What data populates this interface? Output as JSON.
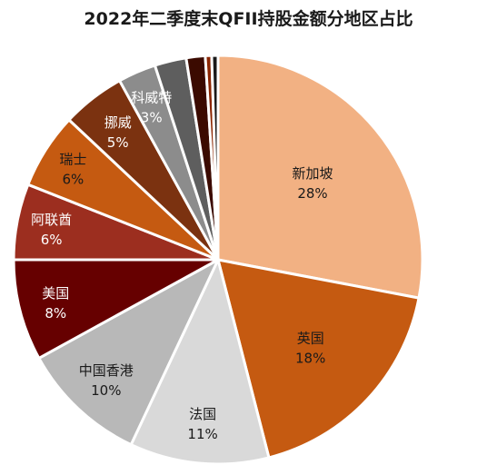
{
  "chart_data": {
    "type": "pie",
    "title": "2022年二季度末QFII持股金额分地区占比",
    "slices": [
      {
        "name": "新加坡",
        "value": 28,
        "label": "28%",
        "color": "#f2b183",
        "text_color": "#1a1a1a"
      },
      {
        "name": "英国",
        "value": 18,
        "label": "18%",
        "color": "#c55a11",
        "text_color": "#1a1a1a"
      },
      {
        "name": "法国",
        "value": 11,
        "label": "11%",
        "color": "#d9d9d9",
        "text_color": "#1a1a1a"
      },
      {
        "name": "中国香港",
        "value": 10,
        "label": "10%",
        "color": "#b8b8b8",
        "text_color": "#1a1a1a"
      },
      {
        "name": "美国",
        "value": 8,
        "label": "8%",
        "color": "#660000",
        "text_color": "#ffffff"
      },
      {
        "name": "阿联酋",
        "value": 6,
        "label": "6%",
        "color": "#9c2e1f",
        "text_color": "#ffffff"
      },
      {
        "name": "瑞士",
        "value": 6,
        "label": "6%",
        "color": "#c55a11",
        "text_color": "#1a1a1a"
      },
      {
        "name": "挪威",
        "value": 5,
        "label": "5%",
        "color": "#7b3210",
        "text_color": "#ffffff"
      },
      {
        "name": "科威特",
        "value": 3,
        "label": "3%",
        "color": "#8c8c8c",
        "text_color": "#ffffff"
      },
      {
        "name": "",
        "value": 2.5,
        "label": "",
        "color": "#5e5e5e",
        "text_color": "#ffffff"
      },
      {
        "name": "",
        "value": 1.5,
        "label": "",
        "color": "#3b0a00",
        "text_color": "#ffffff"
      },
      {
        "name": "",
        "value": 0.5,
        "label": "",
        "color": "#8b2500",
        "text_color": "#ffffff"
      },
      {
        "name": "",
        "value": 0.5,
        "label": "",
        "color": "#1a1a1a",
        "text_color": "#ffffff"
      }
    ],
    "legend": "none"
  }
}
